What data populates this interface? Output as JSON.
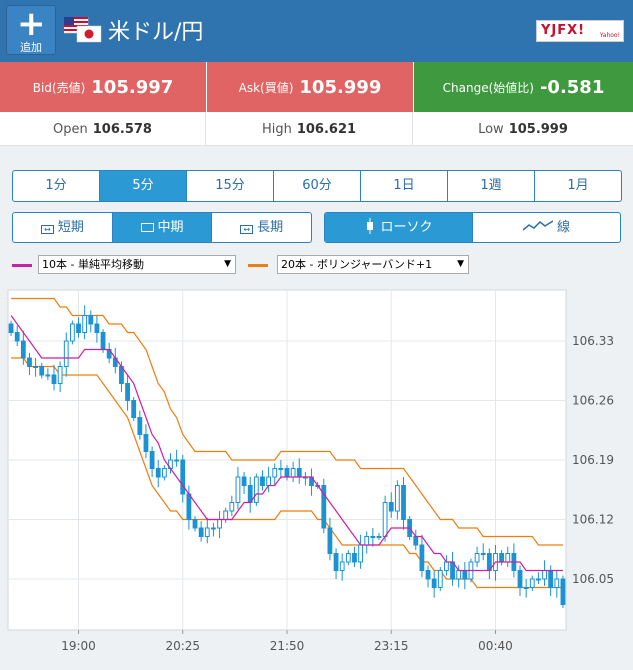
{
  "header": {
    "add_label": "追加",
    "pair_title": "米ドル/円",
    "logo_text": "YJFX!",
    "logo_sub": "Yahoo!"
  },
  "quotes": {
    "bid_label": "Bid(売値)",
    "bid_value": "105.997",
    "ask_label": "Ask(買値)",
    "ask_value": "105.999",
    "change_label": "Change(始値比)",
    "change_value": "-0.581"
  },
  "stats": {
    "open_label": "Open",
    "open_value": "106.578",
    "high_label": "High",
    "high_value": "106.621",
    "low_label": "Low",
    "low_value": "105.999"
  },
  "timeframes": [
    {
      "label": "1分",
      "active": false
    },
    {
      "label": "5分",
      "active": true
    },
    {
      "label": "15分",
      "active": false
    },
    {
      "label": "60分",
      "active": false
    },
    {
      "label": "1日",
      "active": false
    },
    {
      "label": "1週",
      "active": false
    },
    {
      "label": "1月",
      "active": false
    }
  ],
  "spans": [
    {
      "label": "短期",
      "active": false
    },
    {
      "label": "中期",
      "active": true
    },
    {
      "label": "長期",
      "active": false
    }
  ],
  "chart_types": [
    {
      "label": "ローソク",
      "active": true
    },
    {
      "label": "線",
      "active": false
    }
  ],
  "indicators": {
    "ma_label": "10本 - 単純平均移動",
    "bb_label": "20本 - ボリンジャーバンド+1",
    "ma_color": "#cc1fa8",
    "bb_color": "#ef7d0e"
  },
  "colors": {
    "candle": "#1a92d4",
    "bid_bg": "#e06464",
    "change_bg": "#3f993e",
    "header_bg": "#2f74ae"
  },
  "chart_data": {
    "type": "candlestick",
    "x_tick_labels": [
      "19:00",
      "20:25",
      "21:50",
      "23:15",
      "00:40"
    ],
    "y_tick_labels": [
      "106.33",
      "106.26",
      "106.19",
      "106.12",
      "106.05"
    ],
    "ylim": [
      105.99,
      106.39
    ],
    "grid": true,
    "close": [
      106.34,
      106.33,
      106.31,
      106.3,
      106.3,
      106.29,
      106.29,
      106.28,
      106.3,
      106.33,
      106.35,
      106.34,
      106.36,
      106.35,
      106.34,
      106.32,
      106.31,
      106.3,
      106.28,
      106.26,
      106.24,
      106.22,
      106.2,
      106.18,
      106.17,
      106.18,
      106.19,
      106.19,
      106.15,
      106.12,
      106.11,
      106.1,
      106.11,
      106.11,
      106.12,
      106.13,
      106.14,
      106.17,
      106.16,
      106.14,
      106.17,
      106.16,
      106.17,
      106.18,
      106.18,
      106.17,
      106.18,
      106.17,
      106.17,
      106.16,
      106.16,
      106.11,
      106.08,
      106.06,
      106.07,
      106.08,
      106.07,
      106.09,
      106.1,
      106.1,
      106.1,
      106.14,
      106.13,
      106.16,
      106.12,
      106.1,
      106.09,
      106.06,
      106.05,
      106.04,
      106.06,
      106.07,
      106.05,
      106.06,
      106.05,
      106.07,
      106.08,
      106.08,
      106.06,
      106.08,
      106.07,
      106.08,
      106.06,
      106.04,
      106.04,
      106.05,
      106.05,
      106.06,
      106.04,
      106.05,
      106.02
    ],
    "ma10": [
      106.36,
      106.35,
      106.34,
      106.33,
      106.32,
      106.31,
      106.31,
      106.31,
      106.31,
      106.31,
      106.31,
      106.31,
      106.32,
      106.32,
      106.32,
      106.32,
      106.32,
      106.31,
      106.3,
      106.29,
      106.28,
      106.26,
      106.24,
      106.22,
      106.21,
      106.19,
      106.18,
      106.17,
      106.16,
      106.15,
      106.14,
      106.13,
      106.12,
      106.12,
      106.12,
      106.12,
      106.12,
      106.13,
      106.14,
      106.14,
      106.15,
      106.15,
      106.16,
      106.16,
      106.17,
      106.17,
      106.17,
      106.17,
      106.17,
      106.17,
      106.16,
      106.15,
      106.14,
      106.13,
      106.12,
      106.11,
      106.1,
      106.09,
      106.09,
      106.09,
      106.09,
      106.1,
      106.11,
      106.11,
      106.11,
      106.11,
      106.1,
      106.1,
      106.09,
      106.08,
      106.08,
      106.07,
      106.07,
      106.06,
      106.06,
      106.06,
      106.06,
      106.06,
      106.06,
      106.07,
      106.07,
      106.07,
      106.07,
      106.07,
      106.06,
      106.06,
      106.06,
      106.06,
      106.06,
      106.06,
      106.06
    ],
    "bb_upper": [
      106.38,
      106.38,
      106.38,
      106.38,
      106.38,
      106.38,
      106.38,
      106.38,
      106.37,
      106.37,
      106.36,
      106.36,
      106.36,
      106.36,
      106.36,
      106.36,
      106.35,
      106.35,
      106.35,
      106.34,
      106.34,
      106.33,
      106.32,
      106.3,
      106.28,
      106.27,
      106.25,
      106.24,
      106.22,
      106.21,
      106.2,
      106.2,
      106.2,
      106.2,
      106.2,
      106.2,
      106.19,
      106.19,
      106.19,
      106.19,
      106.19,
      106.19,
      106.19,
      106.19,
      106.2,
      106.2,
      106.2,
      106.2,
      106.2,
      106.2,
      106.2,
      106.2,
      106.2,
      106.19,
      106.19,
      106.19,
      106.19,
      106.18,
      106.18,
      106.18,
      106.18,
      106.18,
      106.18,
      106.18,
      106.18,
      106.17,
      106.16,
      106.15,
      106.14,
      106.13,
      106.12,
      106.12,
      106.12,
      106.11,
      106.11,
      106.11,
      106.11,
      106.1,
      106.1,
      106.1,
      106.1,
      106.1,
      106.1,
      106.1,
      106.1,
      106.1,
      106.09,
      106.09,
      106.09,
      106.09,
      106.09
    ],
    "bb_lower": [
      106.31,
      106.31,
      106.31,
      106.3,
      106.3,
      106.3,
      106.3,
      106.3,
      106.29,
      106.29,
      106.29,
      106.29,
      106.29,
      106.29,
      106.29,
      106.28,
      106.27,
      106.26,
      106.25,
      106.24,
      106.22,
      106.2,
      106.18,
      106.16,
      106.15,
      106.14,
      106.13,
      106.13,
      106.12,
      106.12,
      106.12,
      106.12,
      106.12,
      106.12,
      106.12,
      106.12,
      106.12,
      106.12,
      106.12,
      106.12,
      106.12,
      106.12,
      106.12,
      106.12,
      106.13,
      106.13,
      106.13,
      106.13,
      106.13,
      106.13,
      106.12,
      106.12,
      106.11,
      106.1,
      106.09,
      106.09,
      106.09,
      106.09,
      106.09,
      106.09,
      106.09,
      106.09,
      106.09,
      106.09,
      106.09,
      106.08,
      106.08,
      106.07,
      106.07,
      106.06,
      106.06,
      106.05,
      106.05,
      106.05,
      106.05,
      106.05,
      106.04,
      106.04,
      106.04,
      106.04,
      106.04,
      106.04,
      106.04,
      106.04,
      106.04,
      106.04,
      106.04,
      106.04,
      106.04,
      106.04,
      106.04
    ]
  }
}
